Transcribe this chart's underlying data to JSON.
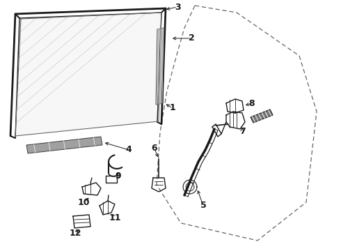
{
  "bg_color": "#ffffff",
  "line_color": "#1a1a1a",
  "label_color": "#111111",
  "label_fontsize": 9,
  "label_fontweight": "bold",
  "dashed_color": "#555555",
  "hatch_color": "#aaaaaa",
  "grey_color": "#888888"
}
